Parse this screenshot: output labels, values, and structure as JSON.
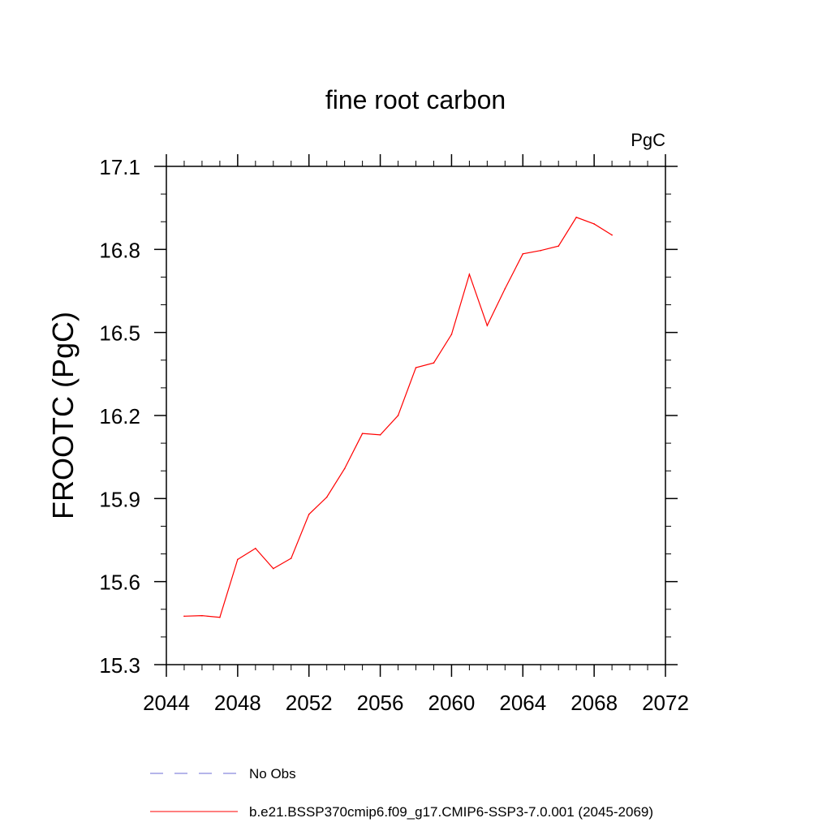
{
  "chart_data": {
    "type": "line",
    "title": "fine root carbon",
    "units": "PgC",
    "ylabel": "FROOTC  (PgC)",
    "xlabel": "",
    "xlim": [
      2044,
      2072
    ],
    "ylim": [
      15.3,
      17.1
    ],
    "x_ticks": [
      "2044",
      "2048",
      "2052",
      "2056",
      "2060",
      "2064",
      "2068",
      "2072"
    ],
    "y_ticks": [
      "15.3",
      "15.6",
      "15.9",
      "16.2",
      "16.5",
      "16.8",
      "17.1"
    ],
    "legend": [
      {
        "label": "No Obs",
        "color": "#6b6bd6",
        "dashed": true
      },
      {
        "label": "b.e21.BSSP370cmip6.f09_g17.CMIP6-SSP3-7.0.001 (2045-2069)",
        "color": "#ff0000",
        "dashed": false
      }
    ],
    "series": [
      {
        "name": "b.e21.BSSP370cmip6.f09_g17.CMIP6-SSP3-7.0.001 (2045-2069)",
        "color": "#ff0000",
        "x": [
          2045,
          2046,
          2047,
          2048,
          2049,
          2050,
          2051,
          2052,
          2053,
          2054,
          2055,
          2056,
          2057,
          2058,
          2059,
          2060,
          2061,
          2062,
          2063,
          2064,
          2065,
          2066,
          2067,
          2068,
          2069
        ],
        "y": [
          15.475,
          15.477,
          15.471,
          15.68,
          15.72,
          15.647,
          15.684,
          15.843,
          15.905,
          16.008,
          16.135,
          16.13,
          16.2,
          16.373,
          16.39,
          16.493,
          16.71,
          16.525,
          16.658,
          16.784,
          16.796,
          16.812,
          16.916,
          16.892,
          16.852
        ]
      }
    ]
  }
}
